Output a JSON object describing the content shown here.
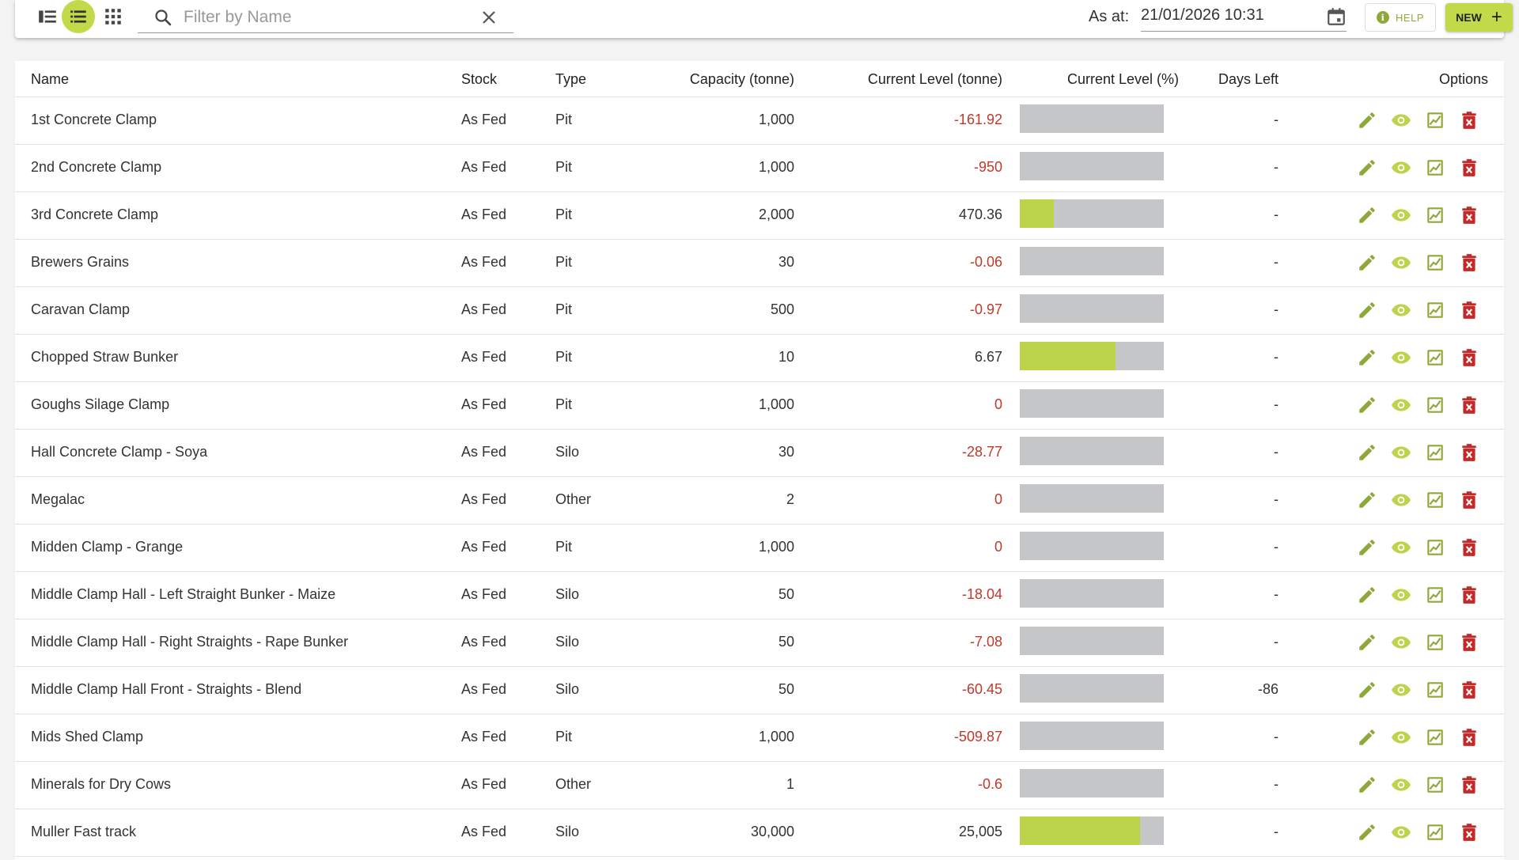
{
  "toolbar": {
    "search_placeholder": "Filter by Name",
    "as_at_label": "As at:",
    "date_value": "21/01/2026 10:31",
    "help_label": "HELP",
    "new_label": "NEW",
    "accent_color": "#c2d94a"
  },
  "table": {
    "headers": {
      "name": "Name",
      "stock": "Stock",
      "type": "Type",
      "capacity": "Capacity (tonne)",
      "current_level": "Current Level (tonne)",
      "current_pct": "Current Level (%)",
      "days_left": "Days Left",
      "options": "Options"
    },
    "rows": [
      {
        "name": "1st Concrete Clamp",
        "stock": "As Fed",
        "type": "Pit",
        "capacity": "1,000",
        "level": "-161.92",
        "negative": true,
        "fill_pct": 0,
        "days_left": "-"
      },
      {
        "name": "2nd Concrete Clamp",
        "stock": "As Fed",
        "type": "Pit",
        "capacity": "1,000",
        "level": "-950",
        "negative": true,
        "fill_pct": 0,
        "days_left": "-"
      },
      {
        "name": "3rd Concrete Clamp",
        "stock": "As Fed",
        "type": "Pit",
        "capacity": "2,000",
        "level": "470.36",
        "negative": false,
        "fill_pct": 23.5,
        "days_left": "-"
      },
      {
        "name": "Brewers Grains",
        "stock": "As Fed",
        "type": "Pit",
        "capacity": "30",
        "level": "-0.06",
        "negative": true,
        "fill_pct": 0,
        "days_left": "-"
      },
      {
        "name": "Caravan Clamp",
        "stock": "As Fed",
        "type": "Pit",
        "capacity": "500",
        "level": "-0.97",
        "negative": true,
        "fill_pct": 0,
        "days_left": "-"
      },
      {
        "name": "Chopped Straw Bunker",
        "stock": "As Fed",
        "type": "Pit",
        "capacity": "10",
        "level": "6.67",
        "negative": false,
        "fill_pct": 66.7,
        "days_left": "-"
      },
      {
        "name": "Goughs Silage Clamp",
        "stock": "As Fed",
        "type": "Pit",
        "capacity": "1,000",
        "level": "0",
        "negative": true,
        "fill_pct": 0,
        "days_left": "-"
      },
      {
        "name": "Hall Concrete Clamp - Soya",
        "stock": "As Fed",
        "type": "Silo",
        "capacity": "30",
        "level": "-28.77",
        "negative": true,
        "fill_pct": 0,
        "days_left": "-"
      },
      {
        "name": "Megalac",
        "stock": "As Fed",
        "type": "Other",
        "capacity": "2",
        "level": "0",
        "negative": true,
        "fill_pct": 0,
        "days_left": "-"
      },
      {
        "name": "Midden Clamp - Grange",
        "stock": "As Fed",
        "type": "Pit",
        "capacity": "1,000",
        "level": "0",
        "negative": true,
        "fill_pct": 0,
        "days_left": "-"
      },
      {
        "name": "Middle Clamp Hall - Left Straight Bunker - Maize",
        "stock": "As Fed",
        "type": "Silo",
        "capacity": "50",
        "level": "-18.04",
        "negative": true,
        "fill_pct": 0,
        "days_left": "-"
      },
      {
        "name": "Middle Clamp Hall - Right Straights - Rape Bunker",
        "stock": "As Fed",
        "type": "Silo",
        "capacity": "50",
        "level": "-7.08",
        "negative": true,
        "fill_pct": 0,
        "days_left": "-"
      },
      {
        "name": "Middle Clamp Hall Front - Straights - Blend",
        "stock": "As Fed",
        "type": "Silo",
        "capacity": "50",
        "level": "-60.45",
        "negative": true,
        "fill_pct": 0,
        "days_left": "-86"
      },
      {
        "name": "Mids Shed Clamp",
        "stock": "As Fed",
        "type": "Pit",
        "capacity": "1,000",
        "level": "-509.87",
        "negative": true,
        "fill_pct": 0,
        "days_left": "-"
      },
      {
        "name": "Minerals for Dry Cows",
        "stock": "As Fed",
        "type": "Other",
        "capacity": "1",
        "level": "-0.6",
        "negative": true,
        "fill_pct": 0,
        "days_left": "-"
      },
      {
        "name": "Muller Fast track",
        "stock": "As Fed",
        "type": "Silo",
        "capacity": "30,000",
        "level": "25,005",
        "negative": false,
        "fill_pct": 83.4,
        "days_left": "-"
      }
    ]
  },
  "colors": {
    "green": "#bcd44a",
    "icon_green": "#8fa83a",
    "red": "#c62828",
    "bar_empty": "#c4c6c7"
  },
  "icons": [
    "sidebar-view-icon",
    "list-view-icon",
    "grid-view-icon",
    "search-icon",
    "close-icon",
    "calendar-icon",
    "info-icon",
    "plus-icon",
    "edit-icon",
    "view-icon",
    "chart-icon",
    "delete-icon"
  ]
}
